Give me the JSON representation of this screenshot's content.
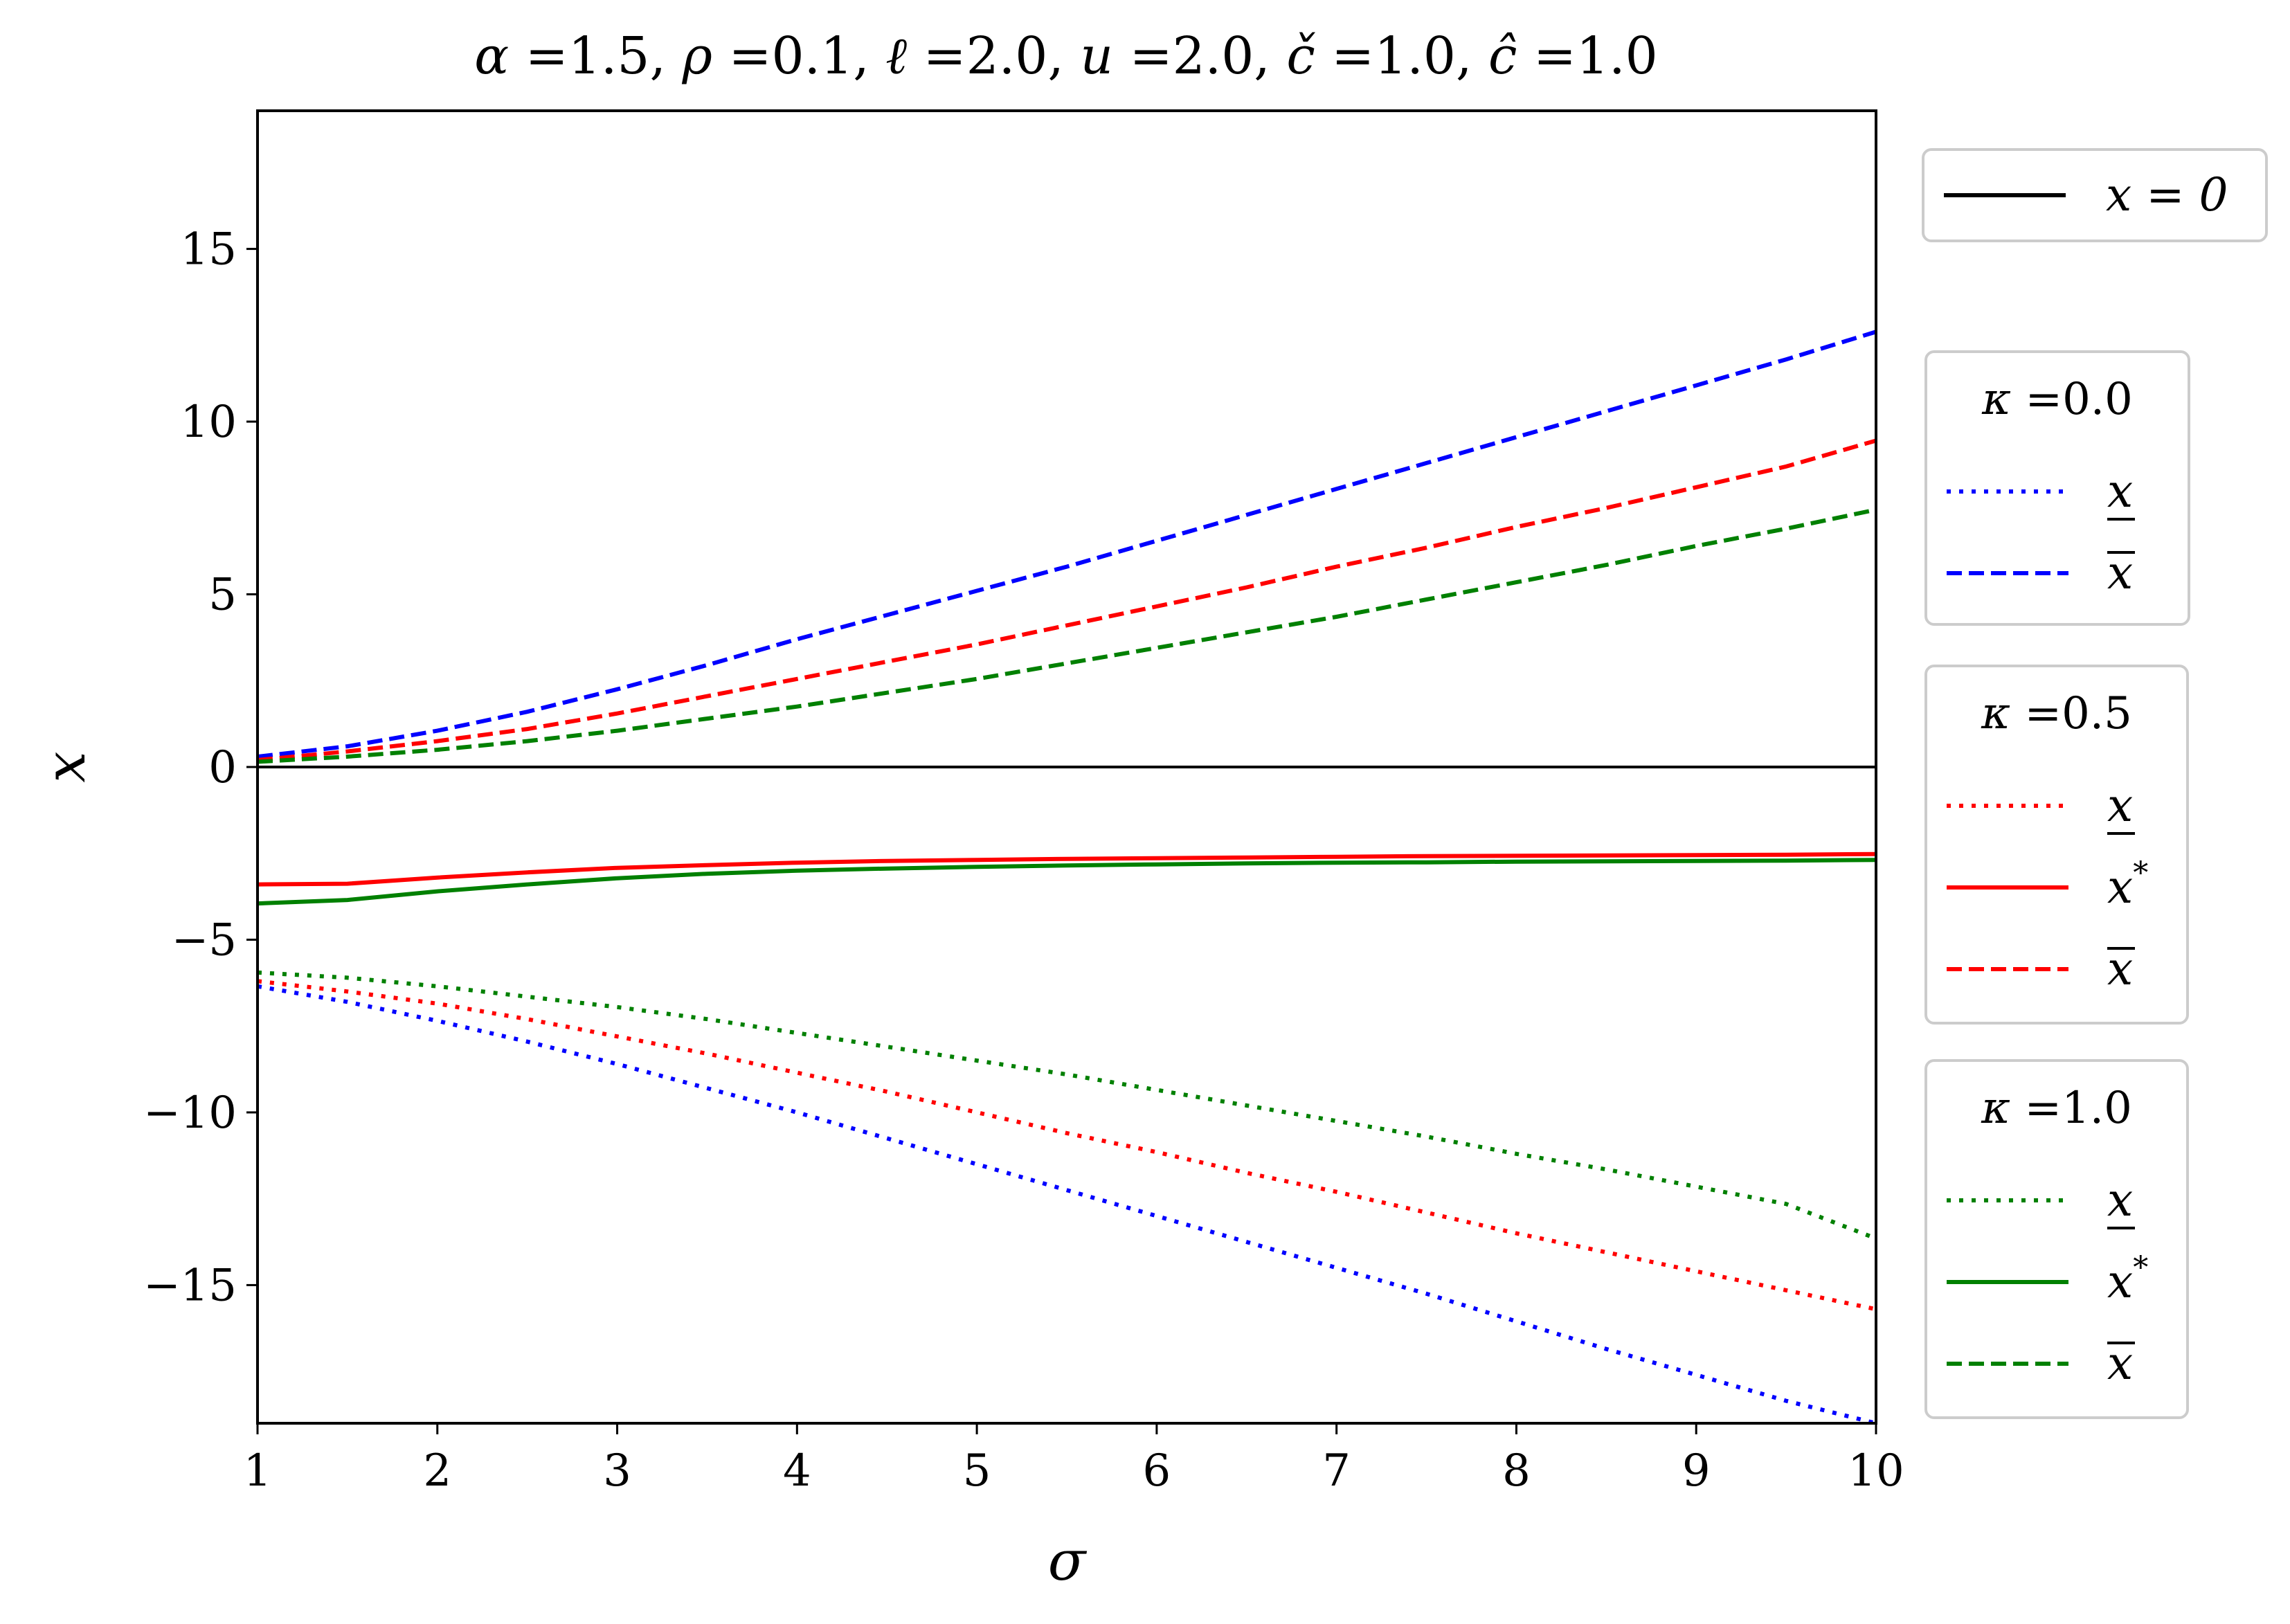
{
  "chart_data": {
    "type": "line",
    "title": {
      "parts": [
        {
          "sym": "α",
          "val": "1.5"
        },
        {
          "sym": "ρ",
          "val": "0.1"
        },
        {
          "sym": "ℓ",
          "val": "2.0"
        },
        {
          "sym": "u",
          "val": "2.0"
        },
        {
          "sym": "č",
          "val": "1.0"
        },
        {
          "sym": "ĉ",
          "val": "1.0"
        }
      ]
    },
    "xlabel": "σ",
    "ylabel": "x",
    "xlim": [
      1,
      10
    ],
    "ylim": [
      -19,
      19
    ],
    "xticks": [
      1,
      2,
      3,
      4,
      5,
      6,
      7,
      8,
      9,
      10
    ],
    "yticks": [
      -15,
      -10,
      -5,
      0,
      5,
      10,
      15
    ],
    "ytick_labels": [
      "−15",
      "−10",
      "−5",
      "0",
      "5",
      "10",
      "15"
    ],
    "grid": false,
    "legend_position": "outside-right",
    "colors": {
      "k0": "#0000ff",
      "k05": "#ff0000",
      "k1": "#008000",
      "zero": "#000000"
    },
    "x": [
      1.0,
      1.5,
      2.0,
      2.5,
      3.0,
      3.5,
      4.0,
      4.5,
      5.0,
      5.5,
      6.0,
      6.5,
      7.0,
      7.5,
      8.0,
      8.5,
      9.0,
      9.5,
      10.0
    ],
    "series": [
      {
        "kappa": "0.0",
        "kind": "lower",
        "style": "dotted",
        "color": "#0000ff",
        "values": [
          -6.35,
          -6.8,
          -7.35,
          -7.95,
          -8.6,
          -9.3,
          -10.0,
          -10.75,
          -11.5,
          -12.25,
          -13.0,
          -13.75,
          -14.5,
          -15.25,
          -16.05,
          -16.85,
          -17.6,
          -18.35,
          -19.0
        ]
      },
      {
        "kappa": "0.0",
        "kind": "upper",
        "style": "dashed",
        "color": "#0000ff",
        "values": [
          0.3,
          0.6,
          1.05,
          1.6,
          2.25,
          2.95,
          3.7,
          4.4,
          5.1,
          5.8,
          6.55,
          7.3,
          8.05,
          8.8,
          9.55,
          10.3,
          11.05,
          11.8,
          12.6
        ]
      },
      {
        "kappa": "0.5",
        "kind": "lower",
        "style": "dotted",
        "color": "#ff0000",
        "values": [
          -6.2,
          -6.5,
          -6.85,
          -7.3,
          -7.8,
          -8.3,
          -8.85,
          -9.4,
          -10.0,
          -10.6,
          -11.15,
          -11.75,
          -12.3,
          -12.9,
          -13.5,
          -14.05,
          -14.6,
          -15.15,
          -15.7
        ]
      },
      {
        "kappa": "0.5",
        "kind": "optimal",
        "style": "solid",
        "color": "#ff0000",
        "values": [
          -3.4,
          -3.38,
          -3.2,
          -3.05,
          -2.92,
          -2.84,
          -2.77,
          -2.72,
          -2.69,
          -2.66,
          -2.64,
          -2.62,
          -2.6,
          -2.58,
          -2.57,
          -2.56,
          -2.55,
          -2.54,
          -2.52
        ]
      },
      {
        "kappa": "0.5",
        "kind": "upper",
        "style": "dashed",
        "color": "#ff0000",
        "values": [
          0.2,
          0.45,
          0.75,
          1.1,
          1.55,
          2.05,
          2.55,
          3.05,
          3.55,
          4.1,
          4.65,
          5.2,
          5.8,
          6.35,
          6.95,
          7.5,
          8.1,
          8.7,
          9.45
        ]
      },
      {
        "kappa": "1.0",
        "kind": "lower",
        "style": "dotted",
        "color": "#008000",
        "values": [
          -5.95,
          -6.1,
          -6.35,
          -6.65,
          -6.95,
          -7.3,
          -7.7,
          -8.1,
          -8.5,
          -8.9,
          -9.35,
          -9.8,
          -10.25,
          -10.7,
          -11.2,
          -11.65,
          -12.15,
          -12.65,
          -13.65
        ]
      },
      {
        "kappa": "1.0",
        "kind": "optimal",
        "style": "solid",
        "color": "#008000",
        "values": [
          -3.95,
          -3.85,
          -3.6,
          -3.4,
          -3.22,
          -3.09,
          -3.0,
          -2.94,
          -2.89,
          -2.85,
          -2.82,
          -2.79,
          -2.77,
          -2.76,
          -2.74,
          -2.73,
          -2.72,
          -2.71,
          -2.69
        ]
      },
      {
        "kappa": "1.0",
        "kind": "upper",
        "style": "dashed",
        "color": "#008000",
        "values": [
          0.15,
          0.3,
          0.5,
          0.75,
          1.05,
          1.4,
          1.75,
          2.15,
          2.55,
          3.0,
          3.45,
          3.9,
          4.35,
          4.85,
          5.35,
          5.85,
          6.4,
          6.9,
          7.45
        ]
      }
    ],
    "reference_line": {
      "label": "x = 0",
      "value": 0,
      "color": "#000000"
    },
    "legend": [
      {
        "title": "",
        "entries": [
          {
            "label": "x = 0",
            "style": "solid",
            "color": "#000000"
          }
        ]
      },
      {
        "title": "κ =0.0",
        "entries": [
          {
            "label": "x",
            "decor": "under",
            "style": "dotted",
            "color": "#0000ff"
          },
          {
            "label": "x",
            "decor": "over",
            "style": "dashed",
            "color": "#0000ff"
          }
        ]
      },
      {
        "title": "κ =0.5",
        "entries": [
          {
            "label": "x",
            "decor": "under",
            "style": "dotted",
            "color": "#ff0000"
          },
          {
            "label": "x*",
            "decor": "star",
            "style": "solid",
            "color": "#ff0000"
          },
          {
            "label": "x",
            "decor": "over",
            "style": "dashed",
            "color": "#ff0000"
          }
        ]
      },
      {
        "title": "κ =1.0",
        "entries": [
          {
            "label": "x",
            "decor": "under",
            "style": "dotted",
            "color": "#008000"
          },
          {
            "label": "x*",
            "decor": "star",
            "style": "solid",
            "color": "#008000"
          },
          {
            "label": "x",
            "decor": "over",
            "style": "dashed",
            "color": "#008000"
          }
        ]
      }
    ]
  }
}
